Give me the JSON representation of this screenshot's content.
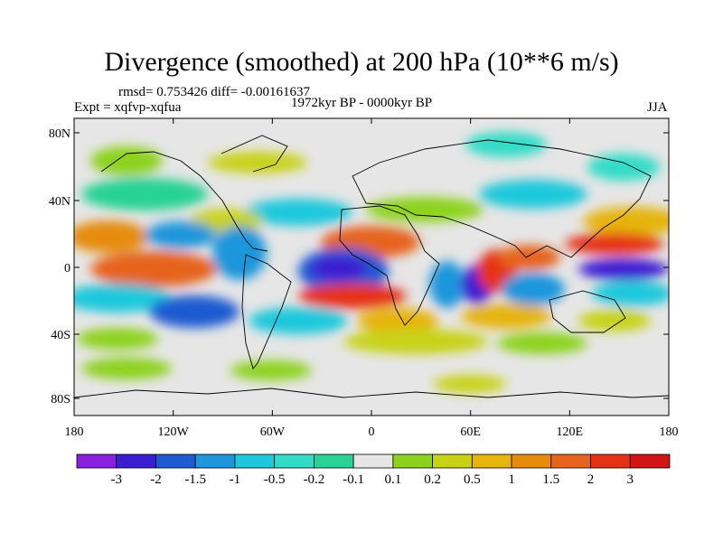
{
  "title": "Divergence (smoothed) at 200 hPa (10**6 m/s)",
  "stats": "rmsd= 0.753426 diff= -0.00161637",
  "expt": "Expt = xqfvp-xqfua",
  "period": "1972kyr BP - 0000kyr BP",
  "season": "JJA",
  "lat_ticks": [
    "80N",
    "40N",
    "0",
    "40S",
    "80S"
  ],
  "lon_ticks": [
    "180",
    "120W",
    "60W",
    "0",
    "60E",
    "120E",
    "180"
  ],
  "colorbar": {
    "labels": [
      "-3",
      "-2",
      "-1.5",
      "-1",
      "-0.5",
      "-0.2",
      "-0.1",
      "0.1",
      "0.2",
      "0.5",
      "1",
      "1.5",
      "2",
      "3"
    ],
    "colors": [
      "#8a1fe0",
      "#3c1ed2",
      "#1e5ad2",
      "#1e96dc",
      "#1ec8dc",
      "#32dcc8",
      "#28d296",
      "#e6e6e6",
      "#8cd21e",
      "#c8d214",
      "#e6b40a",
      "#e68c0a",
      "#e6641e",
      "#e63214",
      "#d21414"
    ]
  }
}
